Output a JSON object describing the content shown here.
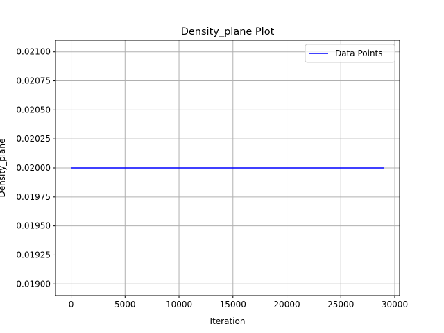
{
  "chart_data": {
    "type": "line",
    "title": "Density_plane Plot",
    "xlabel": "Iteration",
    "ylabel": "Density_plane",
    "xlim": [
      -1450,
      30450
    ],
    "ylim": [
      0.0189,
      0.0211
    ],
    "x_ticks": [
      0,
      5000,
      10000,
      15000,
      20000,
      25000,
      30000
    ],
    "y_ticks": [
      0.019,
      0.01925,
      0.0195,
      0.01975,
      0.02,
      0.02025,
      0.0205,
      0.02075,
      0.021
    ],
    "x_tick_labels": [
      "0",
      "5000",
      "10000",
      "15000",
      "20000",
      "25000",
      "30000"
    ],
    "y_tick_labels": [
      "0.01900",
      "0.01925",
      "0.01950",
      "0.01975",
      "0.02000",
      "0.02025",
      "0.02050",
      "0.02075",
      "0.02100"
    ],
    "grid": true,
    "legend_position": "top-right",
    "series": [
      {
        "name": "Data Points",
        "color": "#0000ff",
        "x": [
          0,
          29000
        ],
        "y": [
          0.02,
          0.02
        ]
      }
    ]
  }
}
